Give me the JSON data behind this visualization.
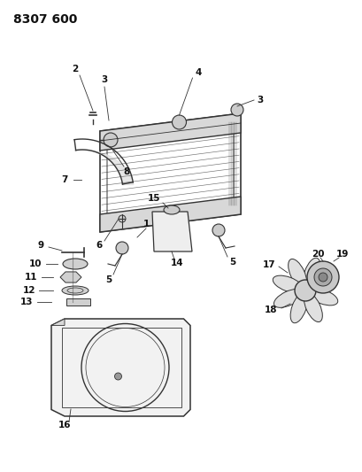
{
  "title": "8307 600",
  "background_color": "#ffffff",
  "line_color": "#333333",
  "label_color": "#111111",
  "fig_width": 4.1,
  "fig_height": 5.33,
  "dpi": 100
}
